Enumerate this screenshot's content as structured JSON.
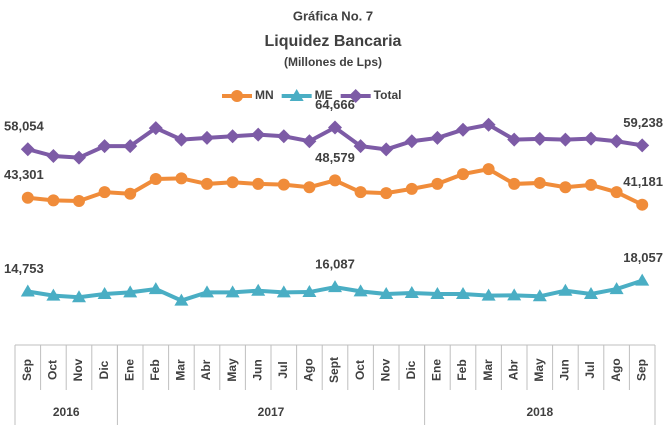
{
  "chart_data": {
    "type": "line",
    "pretitle": "Gráfica No. 7",
    "title": "Liquidez Bancaria",
    "subtitle": "(Millones de Lps)",
    "categories": [
      "Sep",
      "Oct",
      "Nov",
      "Dic",
      "Ene",
      "Feb",
      "Mar",
      "Abr",
      "May",
      "Jun",
      "Jul",
      "Ago",
      "Sept",
      "Oct",
      "Nov",
      "Dic",
      "Ene",
      "Feb",
      "Mar",
      "Abr",
      "May",
      "Jun",
      "Jul",
      "Ago",
      "Sep"
    ],
    "year_groups": [
      {
        "label": "2016",
        "count": 4
      },
      {
        "label": "2017",
        "count": 12
      },
      {
        "label": "2018",
        "count": 9
      }
    ],
    "ylim": [
      0,
      70000
    ],
    "legend": "top",
    "series": [
      {
        "name": "MN",
        "color": "#f08c3a",
        "marker": "circle",
        "values": [
          43301,
          42500,
          42300,
          45000,
          44500,
          49000,
          49200,
          47500,
          48000,
          47500,
          47300,
          46500,
          48579,
          45000,
          44700,
          46000,
          47500,
          50500,
          52000,
          47500,
          47800,
          46500,
          47200,
          45000,
          41181
        ],
        "value_labels": [
          "43,301",
          null,
          null,
          null,
          null,
          null,
          null,
          null,
          null,
          null,
          null,
          null,
          "48,579",
          null,
          null,
          null,
          null,
          null,
          null,
          null,
          null,
          null,
          null,
          null,
          "41,181"
        ]
      },
      {
        "name": "ME",
        "color": "#4aaec4",
        "marker": "triangle",
        "values": [
          14753,
          13500,
          13000,
          14000,
          14500,
          15500,
          12000,
          14500,
          14500,
          15000,
          14500,
          14600,
          16087,
          14800,
          14000,
          14300,
          14000,
          14000,
          13500,
          13600,
          13300,
          15000,
          14000,
          15500,
          18057
        ],
        "value_labels": [
          "14,753",
          null,
          null,
          null,
          null,
          null,
          null,
          null,
          null,
          null,
          null,
          null,
          "16,087",
          null,
          null,
          null,
          null,
          null,
          null,
          null,
          null,
          null,
          null,
          null,
          "18,057"
        ]
      },
      {
        "name": "Total",
        "color": "#7d5ba6",
        "marker": "diamond",
        "values": [
          58054,
          56000,
          55500,
          59000,
          59000,
          64500,
          61000,
          61500,
          62000,
          62500,
          62000,
          60500,
          64666,
          59000,
          58000,
          60500,
          61500,
          64000,
          65500,
          61000,
          61200,
          61000,
          61300,
          60500,
          59238
        ],
        "value_labels": [
          "58,054",
          null,
          null,
          null,
          null,
          null,
          null,
          null,
          null,
          null,
          null,
          null,
          "64,666",
          null,
          null,
          null,
          null,
          null,
          null,
          null,
          null,
          null,
          null,
          null,
          "59,238"
        ]
      }
    ]
  }
}
